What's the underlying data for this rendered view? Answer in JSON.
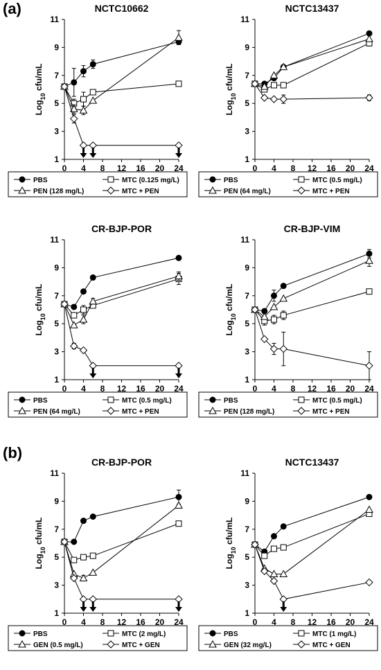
{
  "panel_labels": [
    "(a)",
    "(b)"
  ],
  "markers": {
    "PBS": "circle-filled",
    "MTC": "square-open",
    "PEN": "triangle-open",
    "GEN": "triangle-open",
    "COMBO": "diamond-open"
  },
  "chart_data": [
    {
      "type": "line",
      "title": "NCTC10662",
      "xlabel": "Time (h)",
      "ylabel": "Log10 cfu/mL",
      "xticks": [
        "0",
        "4",
        "8",
        "12",
        "16",
        "20",
        "24"
      ],
      "yticks": [
        "1",
        "3",
        "5",
        "7",
        "9",
        "11"
      ],
      "xlim": [
        0,
        24
      ],
      "ylim": [
        1,
        11
      ],
      "x": [
        0,
        2,
        4,
        6,
        24
      ],
      "series": [
        {
          "name": "PBS",
          "marker": "circle-filled",
          "values": [
            6.2,
            6.5,
            7.3,
            7.8,
            9.4
          ],
          "err": [
            0,
            1.0,
            0.4,
            0.3,
            0.2
          ]
        },
        {
          "name": "MTC (0.125 mg/L)",
          "marker": "square-open",
          "values": [
            6.2,
            5.0,
            5.3,
            5.8,
            6.4
          ],
          "err": [
            0,
            0.3,
            0.5,
            0,
            0
          ]
        },
        {
          "name": "PEN (128 mg/L)",
          "marker": "triangle-open",
          "values": [
            6.2,
            4.6,
            4.5,
            5.2,
            9.7
          ],
          "err": [
            0,
            0.3,
            0.3,
            0,
            0.5
          ]
        },
        {
          "name": "MTC + PEN",
          "marker": "diamond-open",
          "values": [
            6.2,
            3.9,
            2.0,
            2.0,
            2.0
          ],
          "err": [
            0,
            0.3,
            0,
            0,
            0
          ]
        }
      ],
      "arrows_at": [
        4,
        6,
        24
      ],
      "legend": {
        "items": [
          "PBS",
          "MTC (0.125 mg/L)",
          "PEN (128 mg/L)",
          "MTC + PEN"
        ]
      }
    },
    {
      "type": "line",
      "title": "NCTC13437",
      "xlabel": "Time (h)",
      "ylabel": "Log10 cfu/mL",
      "xticks": [
        "0",
        "4",
        "8",
        "12",
        "16",
        "20",
        "24"
      ],
      "yticks": [
        "1",
        "3",
        "5",
        "7",
        "9",
        "11"
      ],
      "xlim": [
        0,
        24
      ],
      "ylim": [
        1,
        11
      ],
      "x": [
        0,
        2,
        4,
        6,
        24
      ],
      "series": [
        {
          "name": "PBS",
          "marker": "circle-filled",
          "values": [
            6.4,
            6.4,
            6.8,
            7.6,
            10.0
          ],
          "err": [
            0,
            0,
            0,
            0,
            0
          ]
        },
        {
          "name": "MTC (0.5 mg/L)",
          "marker": "square-open",
          "values": [
            6.4,
            6.0,
            6.3,
            6.3,
            9.3
          ],
          "err": [
            0,
            0.2,
            0,
            0,
            0.2
          ]
        },
        {
          "name": "PEN (64 mg/L)",
          "marker": "triangle-open",
          "values": [
            6.4,
            6.2,
            7.0,
            7.6,
            9.6
          ],
          "err": [
            0,
            0,
            0,
            0,
            0
          ]
        },
        {
          "name": "MTC + PEN",
          "marker": "diamond-open",
          "values": [
            6.4,
            5.4,
            5.3,
            5.3,
            5.4
          ],
          "err": [
            0,
            0,
            0,
            0.3,
            0.2
          ]
        }
      ],
      "arrows_at": [],
      "legend": {
        "items": [
          "PBS",
          "MTC (0.5 mg/L)",
          "PEN (64 mg/L)",
          "MTC + PEN"
        ]
      }
    },
    {
      "type": "line",
      "title": "CR-BJP-POR",
      "xlabel": "Time (h)",
      "ylabel": "Log10 cfu/mL",
      "xticks": [
        "0",
        "4",
        "8",
        "12",
        "16",
        "20",
        "24"
      ],
      "yticks": [
        "1",
        "3",
        "5",
        "7",
        "9",
        "11"
      ],
      "xlim": [
        0,
        24
      ],
      "ylim": [
        1,
        11
      ],
      "x": [
        0,
        2,
        4,
        6,
        24
      ],
      "series": [
        {
          "name": "PBS",
          "marker": "circle-filled",
          "values": [
            6.4,
            6.2,
            7.3,
            8.3,
            9.7
          ],
          "err": [
            0,
            0,
            0,
            0,
            0
          ]
        },
        {
          "name": "MTC (0.5 mg/L)",
          "marker": "square-open",
          "values": [
            6.4,
            5.6,
            6.0,
            6.3,
            8.2
          ],
          "err": [
            0,
            0,
            0.3,
            0,
            0.4
          ]
        },
        {
          "name": "PEN (64 mg/L)",
          "marker": "triangle-open",
          "values": [
            6.4,
            4.9,
            5.3,
            6.6,
            8.4
          ],
          "err": [
            0,
            0,
            0.3,
            0.2,
            0.3
          ]
        },
        {
          "name": "MTC + PEN",
          "marker": "diamond-open",
          "values": [
            6.4,
            3.4,
            3.1,
            2.0,
            2.0
          ],
          "err": [
            0,
            0.2,
            0,
            0,
            0
          ]
        }
      ],
      "arrows_at": [
        6,
        24
      ],
      "legend": {
        "items": [
          "PBS",
          "MTC (0.5 mg/L)",
          "PEN (64 mg/L)",
          "MTC + PEN"
        ]
      }
    },
    {
      "type": "line",
      "title": "CR-BJP-VIM",
      "xlabel": "Time (h)",
      "ylabel": "Log10 cfu/mL",
      "xticks": [
        "0",
        "4",
        "8",
        "12",
        "16",
        "20",
        "24"
      ],
      "yticks": [
        "1",
        "3",
        "5",
        "7",
        "9",
        "11"
      ],
      "xlim": [
        0,
        24
      ],
      "ylim": [
        1,
        11
      ],
      "x": [
        0,
        2,
        4,
        6,
        24
      ],
      "series": [
        {
          "name": "PBS",
          "marker": "circle-filled",
          "values": [
            6.0,
            5.9,
            7.0,
            7.7,
            10.0
          ],
          "err": [
            0,
            0,
            0.4,
            0,
            0.3
          ]
        },
        {
          "name": "MTC (0.5 mg/L)",
          "marker": "square-open",
          "values": [
            6.0,
            5.2,
            5.3,
            5.6,
            7.3
          ],
          "err": [
            0,
            0.3,
            0.3,
            0.3,
            0
          ]
        },
        {
          "name": "PEN (128 mg/L)",
          "marker": "triangle-open",
          "values": [
            6.0,
            5.5,
            6.2,
            6.8,
            9.5
          ],
          "err": [
            0,
            0,
            0,
            0,
            0.4
          ]
        },
        {
          "name": "MTC + PEN",
          "marker": "diamond-open",
          "values": [
            6.0,
            3.9,
            3.2,
            3.2,
            2.0
          ],
          "err": [
            0,
            0,
            0.4,
            1.2,
            1.0
          ]
        }
      ],
      "arrows_at": [],
      "legend": {
        "items": [
          "PBS",
          "MTC (0.5 mg/L)",
          "PEN (128 mg/L)",
          "MTC + PEN"
        ]
      }
    },
    {
      "type": "line",
      "title": "CR-BJP-POR",
      "xlabel": "Time (h)",
      "ylabel": "Log10 cfu/mL",
      "xticks": [
        "0",
        "4",
        "8",
        "12",
        "16",
        "20",
        "24"
      ],
      "yticks": [
        "1",
        "3",
        "5",
        "7",
        "9",
        "11"
      ],
      "xlim": [
        0,
        24
      ],
      "ylim": [
        1,
        11
      ],
      "x": [
        0,
        2,
        4,
        6,
        24
      ],
      "series": [
        {
          "name": "PBS",
          "marker": "circle-filled",
          "values": [
            6.1,
            6.1,
            7.6,
            7.9,
            9.3
          ],
          "err": [
            0,
            0,
            0,
            0,
            0.5
          ]
        },
        {
          "name": "MTC (2 mg/L)",
          "marker": "square-open",
          "values": [
            6.1,
            4.8,
            5.0,
            5.1,
            7.4
          ],
          "err": [
            0,
            0,
            0,
            0,
            0
          ]
        },
        {
          "name": "GEN (0.5 mg/L)",
          "marker": "triangle-open",
          "values": [
            6.1,
            3.8,
            3.5,
            3.9,
            8.7
          ],
          "err": [
            0,
            0,
            0.2,
            0,
            0
          ]
        },
        {
          "name": "MTC + GEN",
          "marker": "diamond-open",
          "values": [
            6.1,
            3.5,
            2.0,
            2.0,
            2.0
          ],
          "err": [
            0,
            0,
            0,
            0,
            0
          ]
        }
      ],
      "arrows_at": [
        4,
        6,
        24
      ],
      "legend": {
        "items": [
          "PBS",
          "MTC (2 mg/L)",
          "GEN (0.5 mg/L)",
          "MTC + GEN"
        ]
      }
    },
    {
      "type": "line",
      "title": "NCTC13437",
      "xlabel": "Time (h)",
      "ylabel": "Log10 cfu/mL",
      "xticks": [
        "0",
        "4",
        "8",
        "12",
        "16",
        "20",
        "24"
      ],
      "yticks": [
        "1",
        "3",
        "5",
        "7",
        "9",
        "11"
      ],
      "xlim": [
        0,
        24
      ],
      "ylim": [
        1,
        11
      ],
      "x": [
        0,
        2,
        4,
        6,
        24
      ],
      "series": [
        {
          "name": "PBS",
          "marker": "circle-filled",
          "values": [
            5.9,
            5.4,
            6.5,
            7.2,
            9.3
          ],
          "err": [
            0,
            0,
            0,
            0,
            0
          ]
        },
        {
          "name": "MTC (1 mg/L)",
          "marker": "square-open",
          "values": [
            5.9,
            5.1,
            5.6,
            5.7,
            8.1
          ],
          "err": [
            0,
            0,
            0,
            0,
            0
          ]
        },
        {
          "name": "GEN (32 mg/L)",
          "marker": "triangle-open",
          "values": [
            5.9,
            4.2,
            3.8,
            3.8,
            8.4
          ],
          "err": [
            0,
            0,
            0,
            0,
            0
          ]
        },
        {
          "name": "MTC + GEN",
          "marker": "diamond-open",
          "values": [
            5.9,
            4.0,
            3.3,
            2.0,
            3.2
          ],
          "err": [
            0,
            0,
            0,
            0,
            0
          ]
        }
      ],
      "arrows_at": [
        6
      ],
      "legend": {
        "items": [
          "PBS",
          "MTC (1 mg/L)",
          "GEN (32 mg/L)",
          "MTC + GEN"
        ]
      }
    }
  ]
}
